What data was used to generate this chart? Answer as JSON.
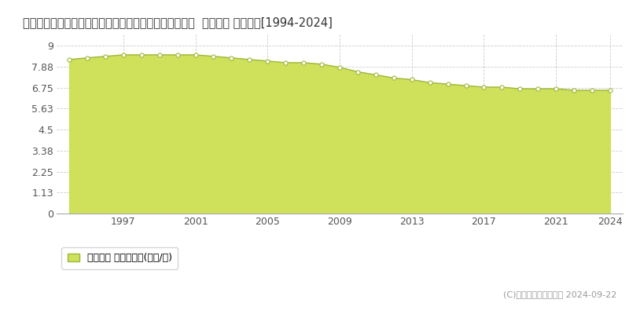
{
  "title": "佐賀県杵島郡白石町大字福田字郷二本楠２０２７番２６  公示地価 地価推移[1994-2024]",
  "years": [
    1994,
    1995,
    1996,
    1997,
    1998,
    1999,
    2000,
    2001,
    2002,
    2003,
    2004,
    2005,
    2006,
    2007,
    2008,
    2009,
    2010,
    2011,
    2012,
    2013,
    2014,
    2015,
    2016,
    2017,
    2018,
    2019,
    2020,
    2021,
    2022,
    2023,
    2024
  ],
  "values": [
    8.26,
    8.35,
    8.43,
    8.51,
    8.51,
    8.51,
    8.51,
    8.51,
    8.43,
    8.35,
    8.26,
    8.18,
    8.09,
    8.09,
    8.01,
    7.84,
    7.6,
    7.44,
    7.27,
    7.18,
    7.02,
    6.94,
    6.86,
    6.78,
    6.78,
    6.69,
    6.69,
    6.69,
    6.61,
    6.61,
    6.61
  ],
  "fill_color": "#cfe05a",
  "line_color": "#9db83a",
  "marker_facecolor": "#ffffff",
  "marker_edgecolor": "#9db83a",
  "yticks": [
    0,
    1.13,
    2.25,
    3.38,
    4.5,
    5.63,
    6.75,
    7.88,
    9
  ],
  "ytick_labels": [
    "0",
    "1.13",
    "2.25",
    "3.38",
    "4.5",
    "5.63",
    "6.75",
    "7.88",
    "9"
  ],
  "ylim": [
    0,
    9.6
  ],
  "xlim_start": 1993.3,
  "xlim_end": 2024.7,
  "xticks": [
    1997,
    2001,
    2005,
    2009,
    2013,
    2017,
    2021,
    2024
  ],
  "grid_color": "#cccccc",
  "bg_color": "#ffffff",
  "plot_bg_color": "#ffffff",
  "legend_label": "公示地価 平均坪単価(万円/坪)",
  "copyright_text": "(C)土地価格ドットコム 2024-09-22",
  "title_fontsize": 10.5,
  "axis_fontsize": 9,
  "legend_fontsize": 9,
  "copyright_fontsize": 8
}
